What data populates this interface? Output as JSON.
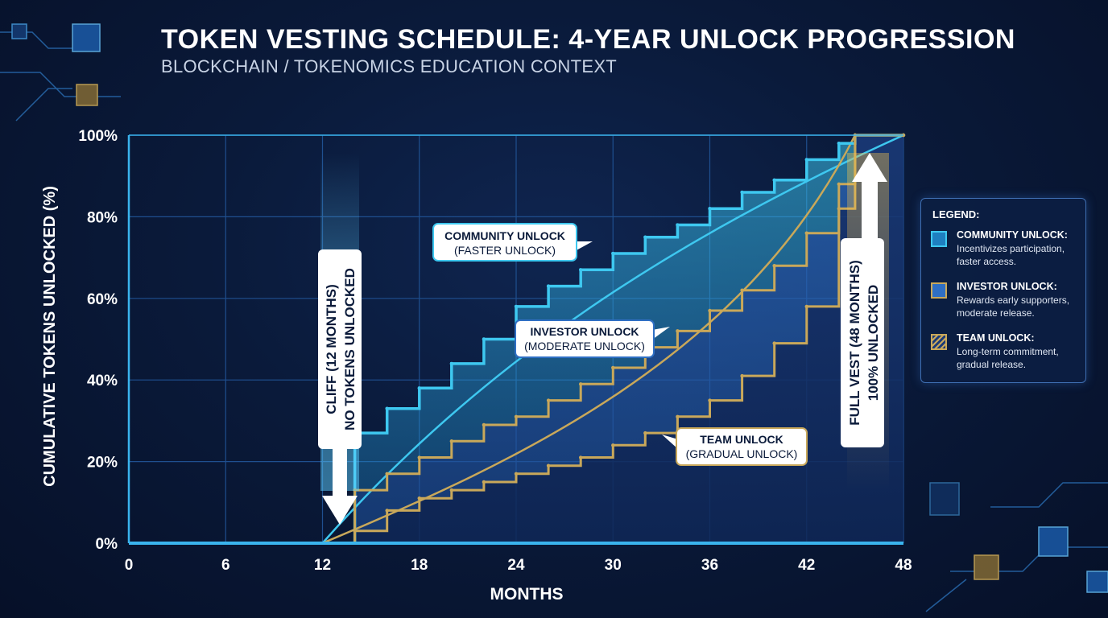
{
  "title": "TOKEN VESTING SCHEDULE: 4-YEAR UNLOCK PROGRESSION",
  "subtitle": "BLOCKCHAIN / TOKENOMICS EDUCATION CONTEXT",
  "legend": {
    "title": "LEGEND:",
    "items": [
      {
        "name": "COMMUNITY UNLOCK:",
        "desc_line1": "Incentivizes participation,",
        "desc_line2": "faster access.",
        "color": "#3ec8f0"
      },
      {
        "name": "INVESTOR UNLOCK:",
        "desc_line1": "Rewards early supporters,",
        "desc_line2": "moderate release.",
        "color": "#c9a85a"
      },
      {
        "name": "TEAM UNLOCK:",
        "desc_line1": "Long-term commitment,",
        "desc_line2": "gradual release.",
        "color": "#c9a85a"
      }
    ]
  },
  "annotations": {
    "cliff_line1": "CLIFF (12 MONTHS)",
    "cliff_line2": "NO TOKENS UNLOCKED",
    "full_vest_line1": "FULL VEST (48 MONTHS)",
    "full_vest_line2": "100% UNLOCKED",
    "community_line1": "COMMUNITY UNLOCK",
    "community_line2": "(FASTER UNLOCK)",
    "investor_line1": "INVESTOR UNLOCK",
    "investor_line2": "(MODERATE UNLOCK)",
    "team_line1": "TEAM UNLOCK",
    "team_line2": "(GRADUAL UNLOCK)"
  },
  "colors": {
    "community": "#3ec8f0",
    "investor_fill": "#2f6fc4",
    "team_line": "#c9a85a",
    "grid": "#1f4f8f",
    "axis": "#3ab4ee",
    "full_vest_glow": "#f2c14e"
  },
  "chart_data": {
    "type": "line",
    "xlabel": "MONTHS",
    "ylabel": "CUMULATIVE TOKENS UNLOCKED (%)",
    "x_ticks": [
      "0",
      "6",
      "12",
      "18",
      "24",
      "30",
      "36",
      "42",
      "48"
    ],
    "y_ticks": [
      "0%",
      "20%",
      "40%",
      "60%",
      "80%",
      "100%"
    ],
    "xlim": [
      0,
      48
    ],
    "ylim": [
      0,
      100
    ],
    "cliff_month": 12,
    "full_vest_month": 48,
    "series": [
      {
        "name": "COMMUNITY UNLOCK",
        "x": [
          0,
          12,
          14,
          16,
          18,
          20,
          22,
          24,
          26,
          28,
          30,
          32,
          34,
          36,
          38,
          40,
          42,
          44,
          45,
          48
        ],
        "y": [
          0,
          0,
          27,
          33,
          38,
          44,
          50,
          58,
          63,
          67,
          71,
          75,
          78,
          82,
          86,
          89,
          94,
          98,
          100,
          100
        ]
      },
      {
        "name": "INVESTOR UNLOCK",
        "x": [
          0,
          12,
          14,
          16,
          18,
          20,
          22,
          24,
          26,
          28,
          30,
          32,
          34,
          36,
          38,
          40,
          42,
          44,
          45,
          48
        ],
        "y": [
          0,
          0,
          13,
          17,
          21,
          25,
          29,
          31,
          35,
          39,
          43,
          48,
          52,
          57,
          62,
          68,
          76,
          88,
          100,
          100
        ]
      },
      {
        "name": "TEAM UNLOCK",
        "x": [
          0,
          12,
          14,
          16,
          18,
          20,
          22,
          24,
          26,
          28,
          30,
          32,
          34,
          36,
          38,
          40,
          42,
          44,
          45,
          48
        ],
        "y": [
          0,
          0,
          3,
          8,
          11,
          13,
          15,
          17,
          19,
          21,
          24,
          27,
          31,
          35,
          41,
          49,
          58,
          82,
          100,
          100
        ]
      }
    ]
  }
}
